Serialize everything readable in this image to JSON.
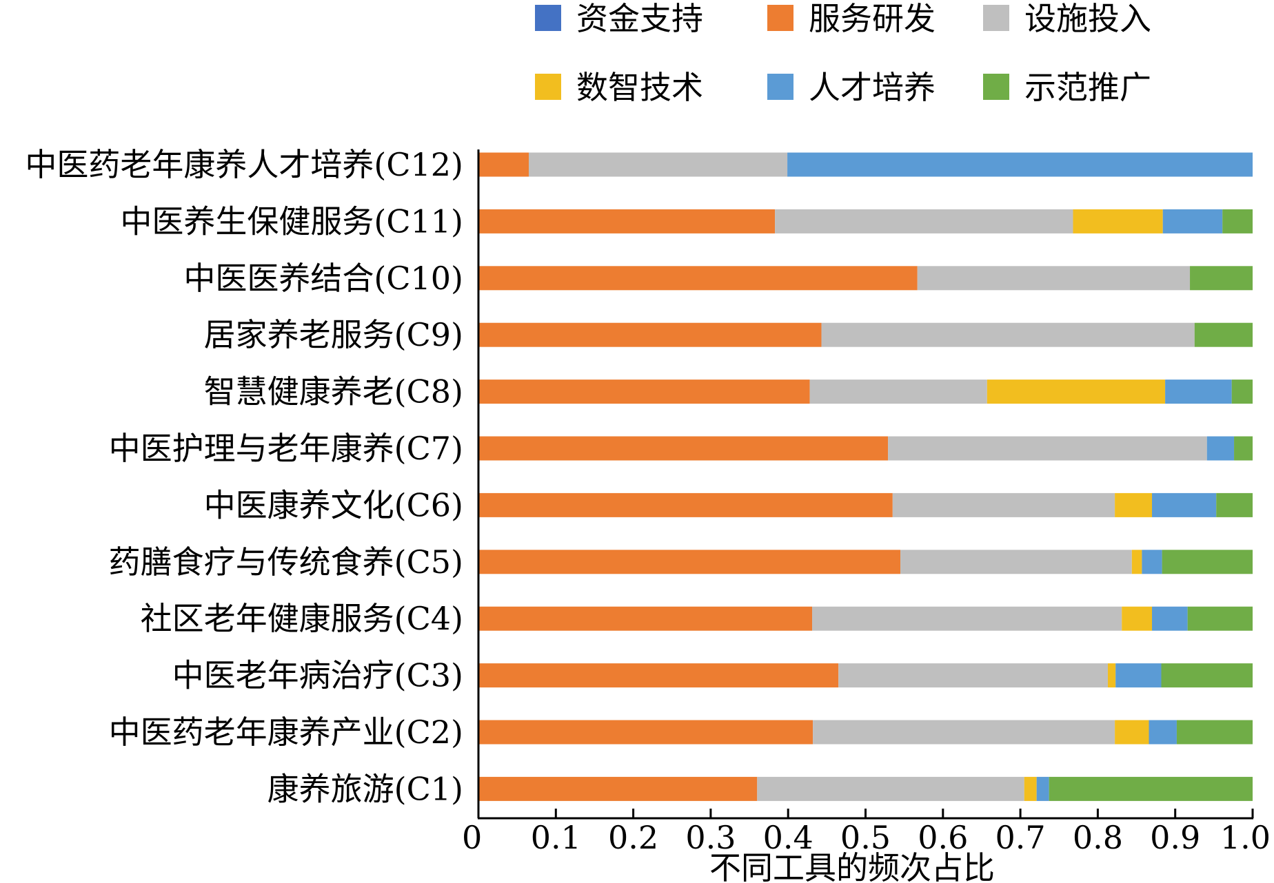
{
  "chart_data": {
    "type": "bar",
    "orientation": "horizontal",
    "stacked": true,
    "xlabel": "不同工具的频次占比",
    "ylabel": "",
    "xlim": [
      0,
      1.0
    ],
    "x_ticks": [
      "0",
      "0.1",
      "0.2",
      "0.3",
      "0.4",
      "0.5",
      "0.6",
      "0.7",
      "0.8",
      "0.9",
      "1.0"
    ],
    "grid": false,
    "legend_position": "top",
    "categories": [
      "中医药老年康养人才培养(C12)",
      "中医养生保健服务(C11)",
      "中医医养结合(C10)",
      "居家养老服务(C9)",
      "智慧健康养老(C8)",
      "中医护理与老年康养(C7)",
      "中医康养文化(C6)",
      "药膳食疗与传统食养(C5)",
      "社区老年健康服务(C4)",
      "中医老年病治疗(C3)",
      "中医药老年康养产业(C2)",
      "康养旅游(C1)"
    ],
    "series": [
      {
        "name": "资金支持",
        "color": "#4472C4",
        "values": [
          0,
          0,
          0,
          0,
          0,
          0,
          0,
          0,
          0,
          0,
          0,
          0
        ]
      },
      {
        "name": "服务研发",
        "color": "#ED7D31",
        "values": [
          0.065,
          0.383,
          0.567,
          0.443,
          0.428,
          0.529,
          0.535,
          0.545,
          0.431,
          0.465,
          0.432,
          0.36
        ]
      },
      {
        "name": "设施投入",
        "color": "#BFBFBF",
        "values": [
          0.334,
          0.385,
          0.352,
          0.482,
          0.229,
          0.412,
          0.287,
          0.299,
          0.4,
          0.348,
          0.39,
          0.345
        ]
      },
      {
        "name": "数智技术",
        "color": "#F2BE1F",
        "values": [
          0,
          0.116,
          0,
          0,
          0.23,
          0,
          0.048,
          0.013,
          0.039,
          0.01,
          0.044,
          0.016
        ]
      },
      {
        "name": "人才培养",
        "color": "#5B9BD5",
        "values": [
          0.601,
          0.077,
          0,
          0,
          0.086,
          0.035,
          0.083,
          0.026,
          0.046,
          0.059,
          0.036,
          0.016
        ]
      },
      {
        "name": "示范推广",
        "color": "#70AD47",
        "values": [
          0,
          0.039,
          0.081,
          0.075,
          0.027,
          0.024,
          0.047,
          0.117,
          0.084,
          0.118,
          0.098,
          0.263
        ]
      }
    ]
  }
}
